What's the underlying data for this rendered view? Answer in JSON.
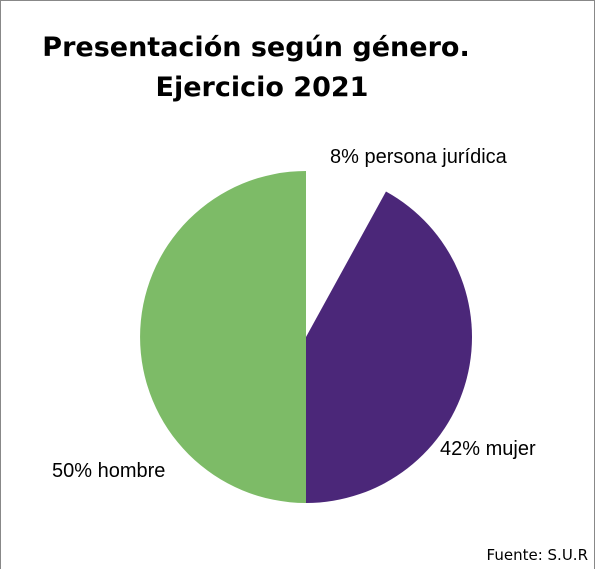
{
  "chart_data": {
    "type": "pie",
    "title": [
      "Presentación según género.",
      "Ejercicio 2021"
    ],
    "categories": [
      "persona jurídica",
      "mujer",
      "hombre"
    ],
    "values": [
      8,
      42,
      50
    ],
    "value_labels": [
      "8%",
      "42%",
      "50%"
    ],
    "colors": [
      "#ffffff",
      "#4b2779",
      "#7dbb67"
    ],
    "source": "Fuente: S.U.R"
  }
}
